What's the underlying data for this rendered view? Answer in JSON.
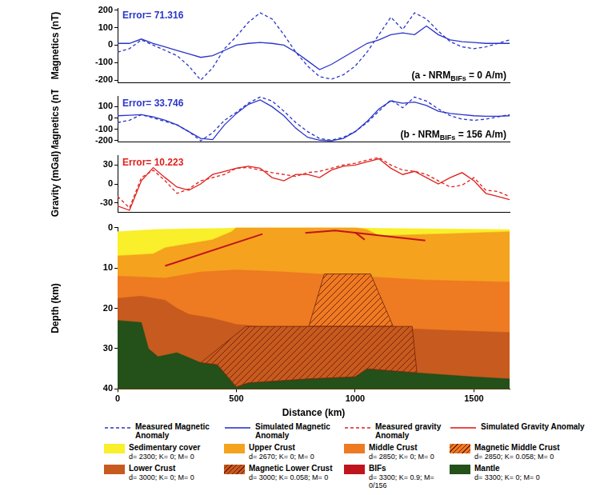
{
  "chart_data": [
    {
      "type": "line",
      "ylabel": "Magnetics (nT)",
      "annotations": [
        {
          "text": "Error= 71.316",
          "color": "#2a35c9"
        },
        {
          "text": "(a - NRM",
          "subscript": "BIFs",
          "suffix": " = 0 A/m)",
          "color": "#000000"
        }
      ],
      "x": [
        0,
        50,
        100,
        150,
        200,
        250,
        300,
        350,
        400,
        450,
        500,
        550,
        600,
        650,
        700,
        750,
        800,
        850,
        900,
        950,
        1000,
        1050,
        1100,
        1150,
        1200,
        1250,
        1300,
        1350,
        1400,
        1450,
        1500,
        1550,
        1600,
        1650
      ],
      "series": [
        {
          "name": "Measured Magnetic Anomaly",
          "color": "#2a35c9",
          "line_style": "dashed",
          "values": [
            -40,
            -20,
            30,
            0,
            -30,
            -60,
            -120,
            -200,
            -130,
            -20,
            50,
            130,
            185,
            150,
            60,
            -40,
            -120,
            -180,
            -195,
            -170,
            -120,
            -40,
            60,
            160,
            90,
            185,
            150,
            80,
            20,
            -10,
            -20,
            -10,
            10,
            30
          ]
        },
        {
          "name": "Simulated Magnetic Anomaly",
          "color": "#2a35c9",
          "line_style": "solid",
          "values": [
            10,
            10,
            35,
            10,
            -10,
            -30,
            -50,
            -70,
            -60,
            -30,
            0,
            10,
            15,
            10,
            0,
            -40,
            -90,
            -140,
            -110,
            -70,
            -30,
            10,
            30,
            60,
            70,
            60,
            110,
            60,
            30,
            20,
            15,
            10,
            10,
            10
          ]
        }
      ],
      "xlim": [
        0,
        1650
      ],
      "ylim": [
        -215,
        210
      ],
      "yticks": [
        -200,
        -100,
        0,
        100,
        200
      ],
      "grid": false,
      "tick_labels": "y",
      "legend": "bottom"
    },
    {
      "type": "line",
      "ylabel": "Magnetics (nT)",
      "annotations": [
        {
          "text": "Error= 33.746",
          "color": "#2a35c9"
        },
        {
          "text": "(b - NRM",
          "subscript": "BIFs",
          "suffix": " = 156 A/m)",
          "color": "#000000"
        }
      ],
      "x": [
        0,
        50,
        100,
        150,
        200,
        250,
        300,
        350,
        400,
        450,
        500,
        550,
        600,
        650,
        700,
        750,
        800,
        850,
        900,
        950,
        1000,
        1050,
        1100,
        1150,
        1200,
        1250,
        1300,
        1350,
        1400,
        1450,
        1500,
        1550,
        1600,
        1650
      ],
      "series": [
        {
          "name": "Measured Magnetic Anomaly",
          "color": "#2a35c9",
          "line_style": "dashed",
          "values": [
            -40,
            -20,
            30,
            0,
            -30,
            -60,
            -120,
            -200,
            -130,
            -20,
            50,
            130,
            185,
            150,
            60,
            -40,
            -120,
            -180,
            -195,
            -170,
            -120,
            -40,
            60,
            160,
            90,
            185,
            150,
            80,
            20,
            -10,
            -20,
            -10,
            10,
            30
          ]
        },
        {
          "name": "Simulated Magnetic Anomaly",
          "color": "#2a35c9",
          "line_style": "solid",
          "values": [
            20,
            25,
            30,
            10,
            -20,
            -60,
            -120,
            -180,
            -190,
            -60,
            40,
            120,
            160,
            100,
            20,
            -90,
            -170,
            -195,
            -200,
            -180,
            -120,
            -30,
            80,
            150,
            130,
            140,
            110,
            60,
            40,
            30,
            20,
            15,
            15,
            20
          ]
        }
      ],
      "xlim": [
        0,
        1650
      ],
      "ylim": [
        -210,
        190
      ],
      "yticks": [
        -200,
        -100,
        0,
        100
      ],
      "grid": false,
      "tick_labels": "y",
      "legend": "bottom"
    },
    {
      "type": "line",
      "ylabel": "Gravity (mGal)",
      "annotations": [
        {
          "text": "Error= 10.223",
          "color": "#e0201b"
        }
      ],
      "x": [
        0,
        50,
        100,
        150,
        200,
        250,
        300,
        350,
        400,
        450,
        500,
        550,
        600,
        650,
        700,
        750,
        800,
        850,
        900,
        950,
        1000,
        1050,
        1100,
        1150,
        1200,
        1250,
        1300,
        1350,
        1400,
        1450,
        1500,
        1550,
        1600,
        1650
      ],
      "series": [
        {
          "name": "Measured gravity Anomaly",
          "color": "#e0201b",
          "line_style": "dashed",
          "values": [
            -20,
            -38,
            10,
            22,
            5,
            -15,
            -8,
            5,
            10,
            15,
            25,
            26,
            22,
            18,
            15,
            12,
            18,
            20,
            25,
            30,
            33,
            38,
            42,
            30,
            22,
            20,
            15,
            5,
            -5,
            -2,
            10,
            -10,
            -12,
            -20
          ]
        },
        {
          "name": "Simulated Gravity Anomaly",
          "color": "#e0201b",
          "line_style": "solid",
          "values": [
            -35,
            -42,
            5,
            26,
            10,
            -5,
            -10,
            0,
            15,
            20,
            25,
            28,
            25,
            10,
            5,
            15,
            15,
            10,
            22,
            28,
            30,
            35,
            40,
            25,
            15,
            20,
            10,
            0,
            10,
            18,
            5,
            -15,
            -20,
            -25
          ]
        }
      ],
      "xlim": [
        0,
        1650
      ],
      "ylim": [
        -45,
        45
      ],
      "yticks": [
        -30,
        0,
        30
      ],
      "grid": false,
      "tick_labels": "y",
      "legend": "bottom"
    },
    {
      "type": "section",
      "xlabel": "Distance (km)",
      "ylabel": "Depth (km)",
      "xlim": [
        0,
        1650
      ],
      "ylim": [
        0,
        40
      ],
      "xticks": [
        0,
        500,
        1000,
        1500
      ],
      "yticks": [
        0,
        10,
        20,
        30,
        40
      ],
      "grid": false,
      "legend": "bottom",
      "layers": [
        {
          "name": "Sedimentary cover",
          "label": "d= 2300; K= 0; M= 0",
          "type": "area",
          "color": "#f9ef2a",
          "x": [
            0,
            150,
            300,
            450,
            500,
            700,
            1000,
            1100,
            1300,
            1650
          ],
          "y": [
            1,
            0.5,
            0.3,
            0.2,
            0,
            0,
            0,
            0.2,
            0.3,
            0.5
          ]
        },
        {
          "name": "Upper Crust",
          "label": "d= 2670; K= 0; M= 0",
          "type": "area",
          "color": "#f5a21e",
          "x": [
            0,
            150,
            200,
            300,
            400,
            480,
            500,
            1000,
            1050,
            1100,
            1400,
            1650
          ],
          "y": [
            7,
            6.5,
            5,
            4,
            3,
            1,
            0,
            0,
            0.5,
            2,
            1.5,
            1
          ]
        },
        {
          "name": "Middle Crust",
          "label": "d= 2850; K= 0; M= 0",
          "type": "area",
          "color": "#ee7a22",
          "x": [
            0,
            200,
            350,
            500,
            700,
            1000,
            1300,
            1650
          ],
          "y": [
            12,
            12.5,
            11,
            10.5,
            11,
            12,
            13,
            13.5
          ]
        },
        {
          "name": "Magnetic Middle Crust",
          "label": "d= 2850; K= 0.058; M= 0",
          "type": "polygon",
          "color": "#ee7a22",
          "line_style": "hatched",
          "x": [
            870,
            1065,
            1160,
            805
          ],
          "y": [
            11.5,
            11.5,
            24.5,
            24.5
          ]
        },
        {
          "name": "Lower Crust",
          "label": "d= 3000; K= 0; M= 0",
          "type": "area",
          "color": "#c75a1e",
          "x": [
            0,
            100,
            200,
            250,
            300,
            400,
            500,
            600,
            800,
            1000,
            1200,
            1400,
            1650
          ],
          "y": [
            17.5,
            17,
            18,
            20,
            21.5,
            22.5,
            24,
            24.5,
            24.5,
            24.5,
            25,
            25.5,
            26
          ]
        },
        {
          "name": "Magnetic Lower Crust",
          "label": "d= 3000; K= 0.058; M= 0",
          "type": "polygon",
          "color": "#c75a1e",
          "line_style": "hatched",
          "x": [
            350,
            540,
            1240,
            1260,
            1050,
            1000,
            800,
            550,
            500,
            420
          ],
          "y": [
            33.5,
            24.5,
            24.5,
            36,
            35,
            37,
            37.5,
            38.5,
            39.5,
            34
          ]
        },
        {
          "name": "BIFs",
          "label": "d= 3300; K= 0.9; M= 0/156",
          "type": "line",
          "color": "#c0141c",
          "lines": [
            {
              "x": [
                200,
                610
              ],
              "y": [
                9.5,
                1.6
              ]
            },
            {
              "x": [
                790,
                915,
                1295
              ],
              "y": [
                1.3,
                0.7,
                3.2
              ]
            },
            {
              "x": [
                1000,
                1040
              ],
              "y": [
                1.2,
                3
              ]
            }
          ]
        },
        {
          "name": "Mantle",
          "label": "d= 3300; K= 0; M= 0",
          "type": "area",
          "color": "#24501a",
          "x": [
            0,
            100,
            130,
            170,
            250,
            350,
            420,
            500,
            550,
            800,
            1000,
            1050,
            1260,
            1500,
            1650
          ],
          "y": [
            23,
            23.5,
            30,
            32,
            31,
            33.5,
            34,
            39.5,
            38.5,
            37.5,
            37,
            35,
            36,
            37,
            37.5
          ]
        }
      ]
    }
  ]
}
